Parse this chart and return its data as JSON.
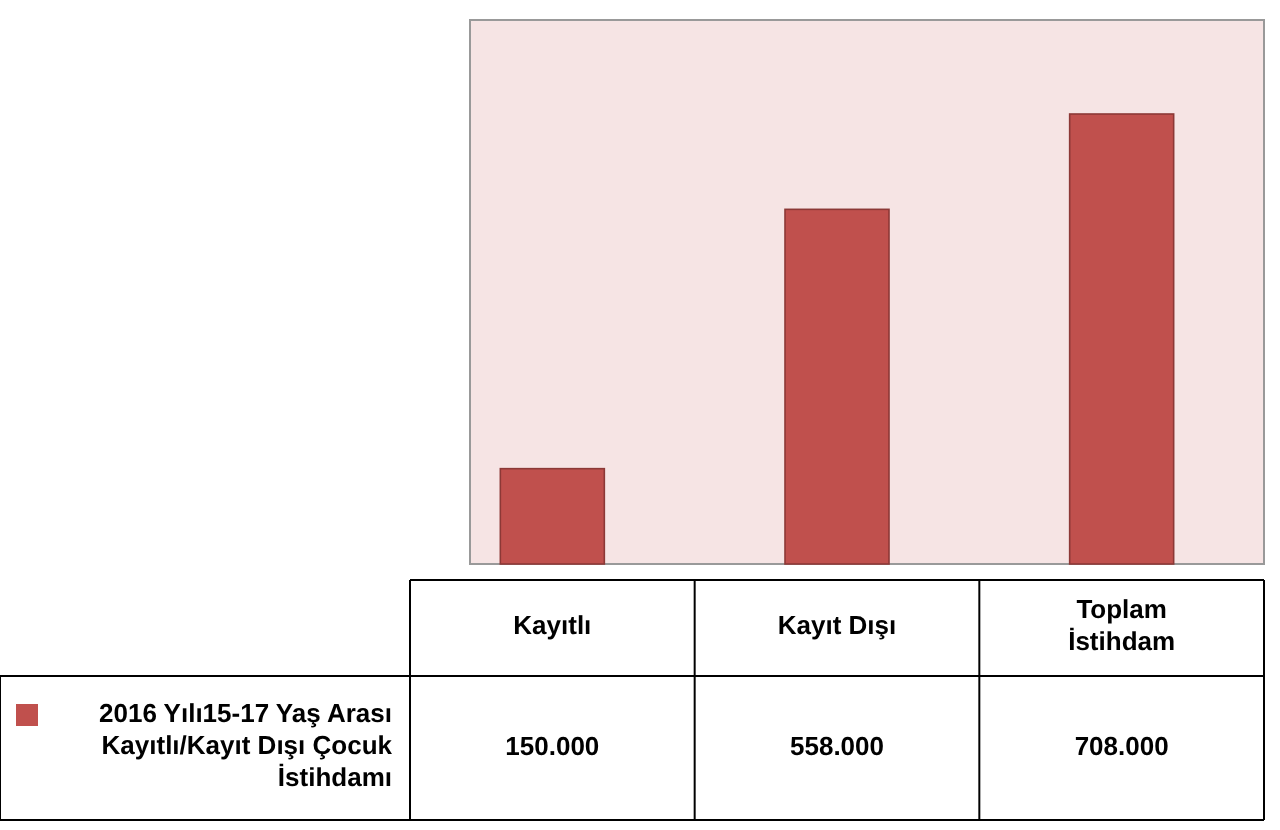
{
  "chart_data": {
    "type": "bar",
    "categories": [
      "Kayıtlı",
      "Kayıt Dışı",
      "Toplam İstihdam"
    ],
    "series": [
      {
        "name": "2016 Yılı15-17 Yaş Arası Kayıtlı/Kayıt Dışı Çocuk İstihdamı",
        "color": "#c0504d",
        "values": [
          150000,
          558000,
          708000
        ],
        "value_labels": [
          "150.000",
          "558.000",
          "708.000"
        ]
      }
    ],
    "legend": "bottom left"
  }
}
